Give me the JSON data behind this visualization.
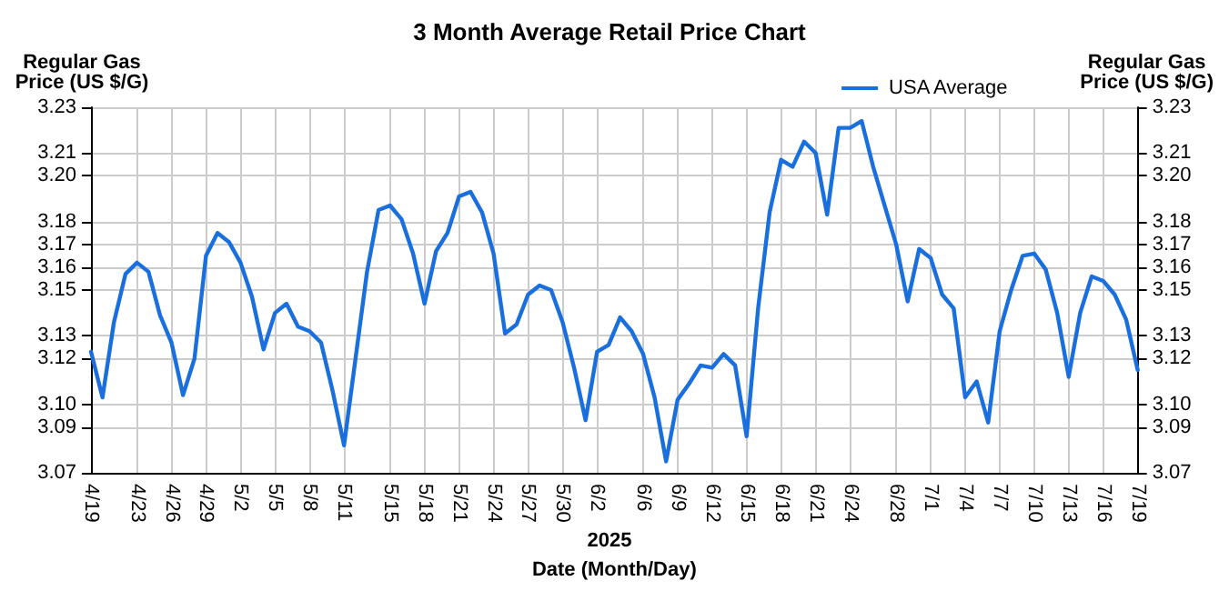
{
  "chart_data": {
    "type": "line",
    "title": "3 Month Average Retail Price Chart",
    "xlabel": "Date (Month/Day)",
    "ylabel": "Regular Gas Price (US $/G)",
    "y2label": "Regular Gas Price (US $/G)",
    "annotations": [
      "2025"
    ],
    "categories": [
      "4/19",
      null,
      null,
      null,
      "4/23",
      null,
      null,
      "4/26",
      null,
      null,
      "4/29",
      null,
      null,
      "5/2",
      null,
      null,
      "5/5",
      null,
      null,
      "5/8",
      null,
      null,
      "5/11",
      null,
      null,
      null,
      "5/15",
      null,
      null,
      "5/18",
      null,
      null,
      "5/21",
      null,
      null,
      "5/24",
      null,
      null,
      "5/27",
      null,
      null,
      "5/30",
      null,
      null,
      "6/2",
      null,
      null,
      null,
      "6/6",
      null,
      null,
      "6/9",
      null,
      null,
      "6/12",
      null,
      null,
      "6/15",
      null,
      null,
      "6/18",
      null,
      null,
      "6/21",
      null,
      null,
      "6/24",
      null,
      null,
      null,
      "6/28",
      null,
      null,
      "7/1",
      null,
      null,
      "7/4",
      null,
      null,
      "7/7",
      null,
      null,
      "7/10",
      null,
      null,
      "7/13",
      null,
      null,
      "7/16",
      null,
      null,
      "7/19"
    ],
    "series": [
      {
        "name": "USA Average",
        "color": "#1a6fdf",
        "values": [
          3.123,
          3.103,
          3.136,
          3.157,
          3.162,
          3.158,
          3.139,
          3.127,
          3.104,
          3.12,
          3.165,
          3.175,
          3.171,
          3.162,
          3.147,
          3.124,
          3.14,
          3.144,
          3.134,
          3.132,
          3.127,
          3.106,
          3.082,
          3.12,
          3.158,
          3.185,
          3.187,
          3.181,
          3.166,
          3.144,
          3.167,
          3.175,
          3.191,
          3.193,
          3.184,
          3.166,
          3.131,
          3.135,
          3.148,
          3.152,
          3.15,
          3.136,
          3.116,
          3.093,
          3.123,
          3.126,
          3.138,
          3.132,
          3.122,
          3.103,
          3.075,
          3.102,
          3.109,
          3.117,
          3.116,
          3.122,
          3.117,
          3.086,
          3.142,
          3.184,
          3.207,
          3.204,
          3.215,
          3.21,
          3.183,
          3.221,
          3.221,
          3.224,
          3.204,
          3.187,
          3.17,
          3.145,
          3.168,
          3.164,
          3.148,
          3.142,
          3.103,
          3.11,
          3.092,
          3.132,
          3.15,
          3.165,
          3.166,
          3.159,
          3.14,
          3.112,
          3.14,
          3.156,
          3.154,
          3.148,
          3.137,
          3.115
        ]
      }
    ],
    "ylim": [
      3.07,
      3.23
    ],
    "yticks": [
      3.07,
      3.09,
      {
        "value": 3.1,
        "label": "3.10"
      },
      3.12,
      3.13,
      3.15,
      3.16,
      3.17,
      3.18,
      {
        "value": 3.2,
        "label": "3.20"
      },
      3.21,
      3.23
    ],
    "y2lim": [
      3.07,
      3.23
    ],
    "y2ticks": [
      3.07,
      3.09,
      {
        "value": 3.1,
        "label": "3.10"
      },
      3.12,
      3.13,
      3.15,
      3.16,
      3.17,
      3.18,
      {
        "value": 3.2,
        "label": "3.20"
      },
      3.21,
      3.23
    ],
    "grid": true,
    "legend": "top right",
    "marker": "none",
    "line_style": "solid"
  }
}
